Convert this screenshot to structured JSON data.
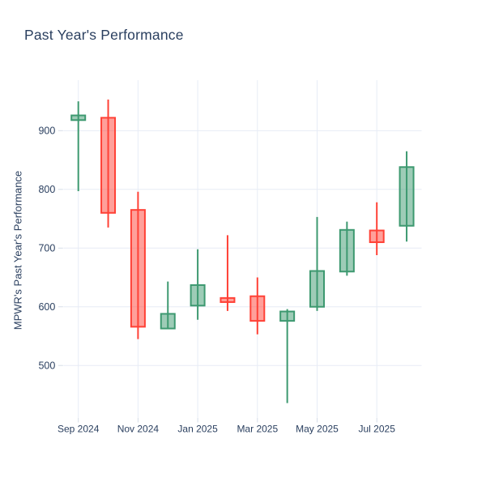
{
  "chart_data": {
    "type": "candlestick",
    "title": "Past Year's Performance",
    "xlabel": "",
    "ylabel": "MPWR's Past Year's Performance",
    "x_tick_labels": [
      "Sep 2024",
      "Nov 2024",
      "Jan 2025",
      "Mar 2025",
      "May 2025",
      "Jul 2025"
    ],
    "y_ticks": [
      900,
      800,
      700,
      600,
      500
    ],
    "ylim": [
      412,
      986
    ],
    "grid": true,
    "legend": false,
    "categories": [
      "Sep 2024",
      "Oct 2024",
      "Nov 2024",
      "Dec 2024",
      "Jan 2025",
      "Feb 2025",
      "Mar 2025",
      "Apr 2025",
      "May 2025",
      "Jun 2025",
      "Jul 2025",
      "Aug 2025"
    ],
    "ohlc": [
      {
        "month": "Sep 2024",
        "open": 918,
        "high": 950,
        "low": 797,
        "close": 926
      },
      {
        "month": "Oct 2024",
        "open": 922,
        "high": 953,
        "low": 735,
        "close": 760
      },
      {
        "month": "Nov 2024",
        "open": 765,
        "high": 796,
        "low": 545,
        "close": 566
      },
      {
        "month": "Dec 2024",
        "open": 563,
        "high": 643,
        "low": 563,
        "close": 588
      },
      {
        "month": "Jan 2025",
        "open": 602,
        "high": 698,
        "low": 578,
        "close": 637
      },
      {
        "month": "Feb 2025",
        "open": 615,
        "high": 722,
        "low": 593,
        "close": 608
      },
      {
        "month": "Mar 2025",
        "open": 618,
        "high": 650,
        "low": 553,
        "close": 576
      },
      {
        "month": "Apr 2025",
        "open": 576,
        "high": 596,
        "low": 436,
        "close": 592
      },
      {
        "month": "May 2025",
        "open": 600,
        "high": 753,
        "low": 593,
        "close": 661
      },
      {
        "month": "Jun 2025",
        "open": 660,
        "high": 745,
        "low": 653,
        "close": 731
      },
      {
        "month": "Jul 2025",
        "open": 730,
        "high": 778,
        "low": 688,
        "close": 710
      },
      {
        "month": "Aug 2025",
        "open": 738,
        "high": 865,
        "low": 711,
        "close": 838
      }
    ],
    "colors": {
      "increasing_line": "#3D9970",
      "increasing_fill": "rgba(61,153,112,0.5)",
      "decreasing_line": "#FF4136",
      "decreasing_fill": "rgba(255,65,54,0.5)",
      "text": "#2a3f5f",
      "grid": "#e7ecf6",
      "tick": "#d6dde8",
      "background": "#ffffff"
    }
  }
}
